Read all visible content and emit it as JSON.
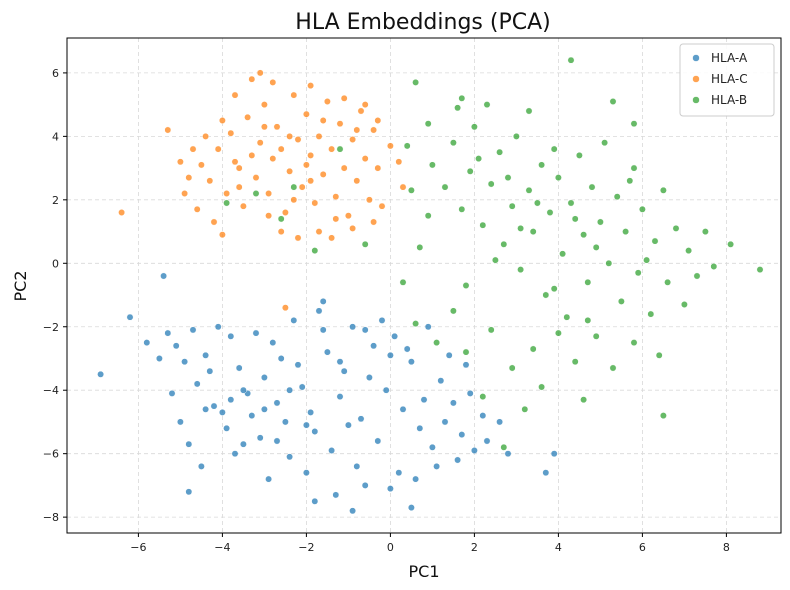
{
  "chart_data": {
    "type": "scatter",
    "title": "HLA Embeddings (PCA)",
    "xlabel": "PC1",
    "ylabel": "PC2",
    "xlim": [
      -7.7,
      9.3
    ],
    "ylim": [
      -8.5,
      7.1
    ],
    "xticks": [
      -6,
      -4,
      -2,
      0,
      2,
      4,
      6,
      8
    ],
    "yticks": [
      -8,
      -6,
      -4,
      -2,
      0,
      2,
      4,
      6
    ],
    "grid": true,
    "legend_position": "top-right",
    "series": [
      {
        "name": "HLA-A",
        "color": "#1f77b4",
        "points": [
          [
            -5.3,
            -2.2
          ],
          [
            -5.1,
            -2.6
          ],
          [
            -4.9,
            -3.1
          ],
          [
            -5.2,
            -4.1
          ],
          [
            -4.7,
            -2.1
          ],
          [
            -4.4,
            -2.9
          ],
          [
            -4.6,
            -3.8
          ],
          [
            -4.2,
            -4.5
          ],
          [
            -4.0,
            -4.7
          ],
          [
            -3.9,
            -5.2
          ],
          [
            -3.8,
            -2.3
          ],
          [
            -3.6,
            -3.3
          ],
          [
            -3.4,
            -4.1
          ],
          [
            -3.3,
            -4.8
          ],
          [
            -3.1,
            -5.5
          ],
          [
            -3.0,
            -3.6
          ],
          [
            -2.8,
            -2.5
          ],
          [
            -2.7,
            -4.4
          ],
          [
            -2.5,
            -5.0
          ],
          [
            -2.4,
            -6.1
          ],
          [
            -2.2,
            -3.2
          ],
          [
            -2.1,
            -3.9
          ],
          [
            -1.9,
            -4.7
          ],
          [
            -1.8,
            -5.3
          ],
          [
            -1.6,
            -2.1
          ],
          [
            -1.5,
            -2.8
          ],
          [
            -1.4,
            -5.9
          ],
          [
            -1.2,
            -4.2
          ],
          [
            -1.1,
            -3.4
          ],
          [
            -0.9,
            -2.0
          ],
          [
            -0.8,
            -6.4
          ],
          [
            -0.7,
            -4.9
          ],
          [
            -0.5,
            -3.6
          ],
          [
            -0.4,
            -2.6
          ],
          [
            -0.3,
            -5.6
          ],
          [
            -0.1,
            -4.0
          ],
          [
            0.1,
            -2.3
          ],
          [
            0.2,
            -6.6
          ],
          [
            0.3,
            -4.6
          ],
          [
            0.5,
            -3.1
          ],
          [
            0.7,
            -5.2
          ],
          [
            0.8,
            -4.3
          ],
          [
            1.0,
            -5.8
          ],
          [
            1.2,
            -3.7
          ],
          [
            1.3,
            -5.0
          ],
          [
            1.5,
            -4.4
          ],
          [
            1.7,
            -5.4
          ],
          [
            1.9,
            -4.1
          ],
          [
            2.0,
            -5.9
          ],
          [
            2.2,
            -4.8
          ],
          [
            -6.9,
            -3.5
          ],
          [
            -6.2,
            -1.7
          ],
          [
            -5.8,
            -2.5
          ],
          [
            -5.5,
            -3.0
          ],
          [
            -5.0,
            -5.0
          ],
          [
            -4.8,
            -5.7
          ],
          [
            -4.5,
            -6.4
          ],
          [
            -4.3,
            -3.4
          ],
          [
            -4.1,
            -2.0
          ],
          [
            -3.7,
            -6.0
          ],
          [
            -3.5,
            -5.7
          ],
          [
            -3.2,
            -2.2
          ],
          [
            -2.9,
            -6.8
          ],
          [
            -2.6,
            -3.0
          ],
          [
            -2.3,
            -1.8
          ],
          [
            -2.0,
            -6.6
          ],
          [
            -1.7,
            -1.5
          ],
          [
            -1.3,
            -7.3
          ],
          [
            -1.0,
            -5.1
          ],
          [
            -0.6,
            -7.0
          ],
          [
            -0.2,
            -1.8
          ],
          [
            0.0,
            -7.1
          ],
          [
            0.4,
            -2.7
          ],
          [
            0.6,
            -6.8
          ],
          [
            0.9,
            -2.0
          ],
          [
            1.1,
            -6.4
          ],
          [
            1.4,
            -2.9
          ],
          [
            1.6,
            -6.2
          ],
          [
            1.8,
            -3.2
          ],
          [
            2.3,
            -5.6
          ],
          [
            2.6,
            -5.0
          ],
          [
            2.8,
            -6.0
          ],
          [
            -4.8,
            -7.2
          ],
          [
            -1.8,
            -7.5
          ],
          [
            -0.9,
            -7.8
          ],
          [
            0.5,
            -7.7
          ],
          [
            3.7,
            -6.6
          ],
          [
            3.9,
            -6.0
          ],
          [
            -5.4,
            -0.4
          ],
          [
            -1.6,
            -1.2
          ],
          [
            -2.4,
            -4.0
          ],
          [
            -3.0,
            -4.6
          ],
          [
            -3.8,
            -4.3
          ],
          [
            -1.2,
            -3.1
          ],
          [
            -0.6,
            -2.1
          ],
          [
            0.0,
            -2.9
          ],
          [
            -2.7,
            -5.6
          ],
          [
            -2.0,
            -5.1
          ],
          [
            -3.5,
            -4.0
          ],
          [
            -4.4,
            -4.6
          ]
        ]
      },
      {
        "name": "HLA-C",
        "color": "#ff7f0e",
        "points": [
          [
            -4.5,
            3.1
          ],
          [
            -4.3,
            2.6
          ],
          [
            -4.1,
            3.6
          ],
          [
            -3.9,
            2.2
          ],
          [
            -3.8,
            4.1
          ],
          [
            -3.6,
            3.0
          ],
          [
            -3.5,
            1.8
          ],
          [
            -3.4,
            4.6
          ],
          [
            -3.2,
            2.7
          ],
          [
            -3.1,
            3.8
          ],
          [
            -3.0,
            5.0
          ],
          [
            -2.9,
            2.2
          ],
          [
            -2.8,
            3.3
          ],
          [
            -2.7,
            4.3
          ],
          [
            -2.5,
            1.6
          ],
          [
            -2.4,
            2.9
          ],
          [
            -2.3,
            5.3
          ],
          [
            -2.2,
            3.9
          ],
          [
            -2.1,
            2.4
          ],
          [
            -2.0,
            4.7
          ],
          [
            -1.9,
            3.4
          ],
          [
            -1.8,
            1.9
          ],
          [
            -1.7,
            4.0
          ],
          [
            -1.6,
            2.8
          ],
          [
            -1.5,
            5.1
          ],
          [
            -1.4,
            3.6
          ],
          [
            -1.3,
            2.1
          ],
          [
            -1.2,
            4.4
          ],
          [
            -1.1,
            3.0
          ],
          [
            -1.0,
            1.5
          ],
          [
            -0.9,
            3.9
          ],
          [
            -0.8,
            2.6
          ],
          [
            -0.7,
            4.8
          ],
          [
            -0.6,
            3.3
          ],
          [
            -0.5,
            2.0
          ],
          [
            -0.4,
            4.2
          ],
          [
            -0.3,
            3.0
          ],
          [
            -0.2,
            1.8
          ],
          [
            0.0,
            3.7
          ],
          [
            0.2,
            3.2
          ],
          [
            -5.3,
            4.2
          ],
          [
            -5.0,
            3.2
          ],
          [
            -4.8,
            2.7
          ],
          [
            -4.6,
            1.7
          ],
          [
            -4.4,
            4.0
          ],
          [
            -4.2,
            1.3
          ],
          [
            -4.0,
            0.9
          ],
          [
            -3.7,
            5.3
          ],
          [
            -3.3,
            5.8
          ],
          [
            -3.1,
            6.0
          ],
          [
            -2.8,
            5.7
          ],
          [
            -2.6,
            1.0
          ],
          [
            -2.2,
            0.8
          ],
          [
            -1.9,
            5.6
          ],
          [
            -1.7,
            1.0
          ],
          [
            -1.4,
            0.8
          ],
          [
            -1.1,
            5.2
          ],
          [
            -0.9,
            1.1
          ],
          [
            -0.6,
            5.0
          ],
          [
            -0.3,
            4.5
          ],
          [
            -6.4,
            1.6
          ],
          [
            -2.5,
            -1.4
          ],
          [
            -4.7,
            3.6
          ],
          [
            -3.3,
            3.4
          ],
          [
            -2.6,
            3.6
          ],
          [
            -2.0,
            3.1
          ],
          [
            -3.7,
            3.2
          ],
          [
            -1.6,
            4.5
          ],
          [
            -2.4,
            4.0
          ],
          [
            -0.8,
            4.2
          ],
          [
            -4.9,
            2.2
          ],
          [
            -4.0,
            4.5
          ],
          [
            -3.0,
            4.3
          ],
          [
            -2.3,
            2.0
          ],
          [
            -1.3,
            1.4
          ],
          [
            -0.4,
            1.3
          ],
          [
            0.3,
            2.4
          ],
          [
            -3.6,
            2.4
          ],
          [
            -2.9,
            1.5
          ],
          [
            -1.9,
            2.6
          ]
        ]
      },
      {
        "name": "HLA-B",
        "color": "#2ca02c",
        "points": [
          [
            1.0,
            3.1
          ],
          [
            1.3,
            2.4
          ],
          [
            1.5,
            3.8
          ],
          [
            1.7,
            1.7
          ],
          [
            1.9,
            2.9
          ],
          [
            2.0,
            4.3
          ],
          [
            2.2,
            1.2
          ],
          [
            2.4,
            2.5
          ],
          [
            2.6,
            3.5
          ],
          [
            2.7,
            0.6
          ],
          [
            2.9,
            1.8
          ],
          [
            3.0,
            4.0
          ],
          [
            3.1,
            -0.2
          ],
          [
            3.3,
            2.3
          ],
          [
            3.4,
            1.0
          ],
          [
            3.6,
            3.1
          ],
          [
            3.7,
            -1.0
          ],
          [
            3.8,
            1.6
          ],
          [
            4.0,
            2.7
          ],
          [
            4.1,
            0.3
          ],
          [
            4.2,
            -1.7
          ],
          [
            4.3,
            1.9
          ],
          [
            4.5,
            3.4
          ],
          [
            4.6,
            0.9
          ],
          [
            4.7,
            -0.6
          ],
          [
            4.8,
            2.4
          ],
          [
            4.9,
            -2.3
          ],
          [
            5.0,
            1.3
          ],
          [
            5.1,
            3.8
          ],
          [
            5.2,
            0.0
          ],
          [
            5.4,
            2.1
          ],
          [
            5.5,
            -1.2
          ],
          [
            5.6,
            1.0
          ],
          [
            5.8,
            3.0
          ],
          [
            5.9,
            -0.3
          ],
          [
            6.0,
            1.7
          ],
          [
            6.2,
            -1.6
          ],
          [
            6.3,
            0.7
          ],
          [
            6.5,
            2.3
          ],
          [
            6.6,
            -0.6
          ],
          [
            6.8,
            1.1
          ],
          [
            7.0,
            -1.3
          ],
          [
            7.1,
            0.4
          ],
          [
            7.3,
            -0.4
          ],
          [
            7.5,
            1.0
          ],
          [
            7.7,
            -0.1
          ],
          [
            8.1,
            0.6
          ],
          [
            8.8,
            -0.2
          ],
          [
            6.4,
            -2.9
          ],
          [
            6.5,
            -4.8
          ],
          [
            5.8,
            -2.5
          ],
          [
            5.3,
            -3.3
          ],
          [
            4.6,
            -4.3
          ],
          [
            4.4,
            -3.1
          ],
          [
            4.0,
            -2.2
          ],
          [
            3.6,
            -3.9
          ],
          [
            3.4,
            -2.7
          ],
          [
            3.2,
            -4.6
          ],
          [
            2.9,
            -3.3
          ],
          [
            2.7,
            -5.8
          ],
          [
            2.4,
            -2.1
          ],
          [
            2.2,
            -4.2
          ],
          [
            1.8,
            -2.8
          ],
          [
            1.5,
            -1.5
          ],
          [
            1.1,
            -2.5
          ],
          [
            0.6,
            -1.9
          ],
          [
            0.3,
            -0.6
          ],
          [
            0.7,
            0.5
          ],
          [
            0.9,
            1.5
          ],
          [
            0.5,
            2.3
          ],
          [
            0.4,
            3.7
          ],
          [
            0.9,
            4.4
          ],
          [
            1.6,
            4.9
          ],
          [
            2.3,
            5.0
          ],
          [
            0.6,
            5.7
          ],
          [
            1.7,
            5.2
          ],
          [
            4.3,
            6.4
          ],
          [
            5.3,
            5.1
          ],
          [
            5.8,
            4.4
          ],
          [
            3.3,
            4.8
          ],
          [
            -1.2,
            3.6
          ],
          [
            -2.6,
            1.4
          ],
          [
            -3.9,
            1.9
          ],
          [
            -1.8,
            0.4
          ],
          [
            -0.6,
            0.6
          ],
          [
            -2.3,
            2.4
          ],
          [
            -3.2,
            2.2
          ],
          [
            3.9,
            -0.8
          ],
          [
            2.5,
            0.1
          ],
          [
            1.8,
            -0.7
          ],
          [
            4.4,
            1.4
          ],
          [
            3.5,
            1.9
          ],
          [
            2.8,
            2.7
          ],
          [
            5.7,
            2.6
          ],
          [
            6.1,
            0.1
          ],
          [
            2.1,
            3.3
          ],
          [
            3.9,
            3.6
          ],
          [
            4.9,
            0.5
          ],
          [
            3.1,
            1.1
          ],
          [
            4.7,
            -1.8
          ]
        ]
      }
    ]
  }
}
